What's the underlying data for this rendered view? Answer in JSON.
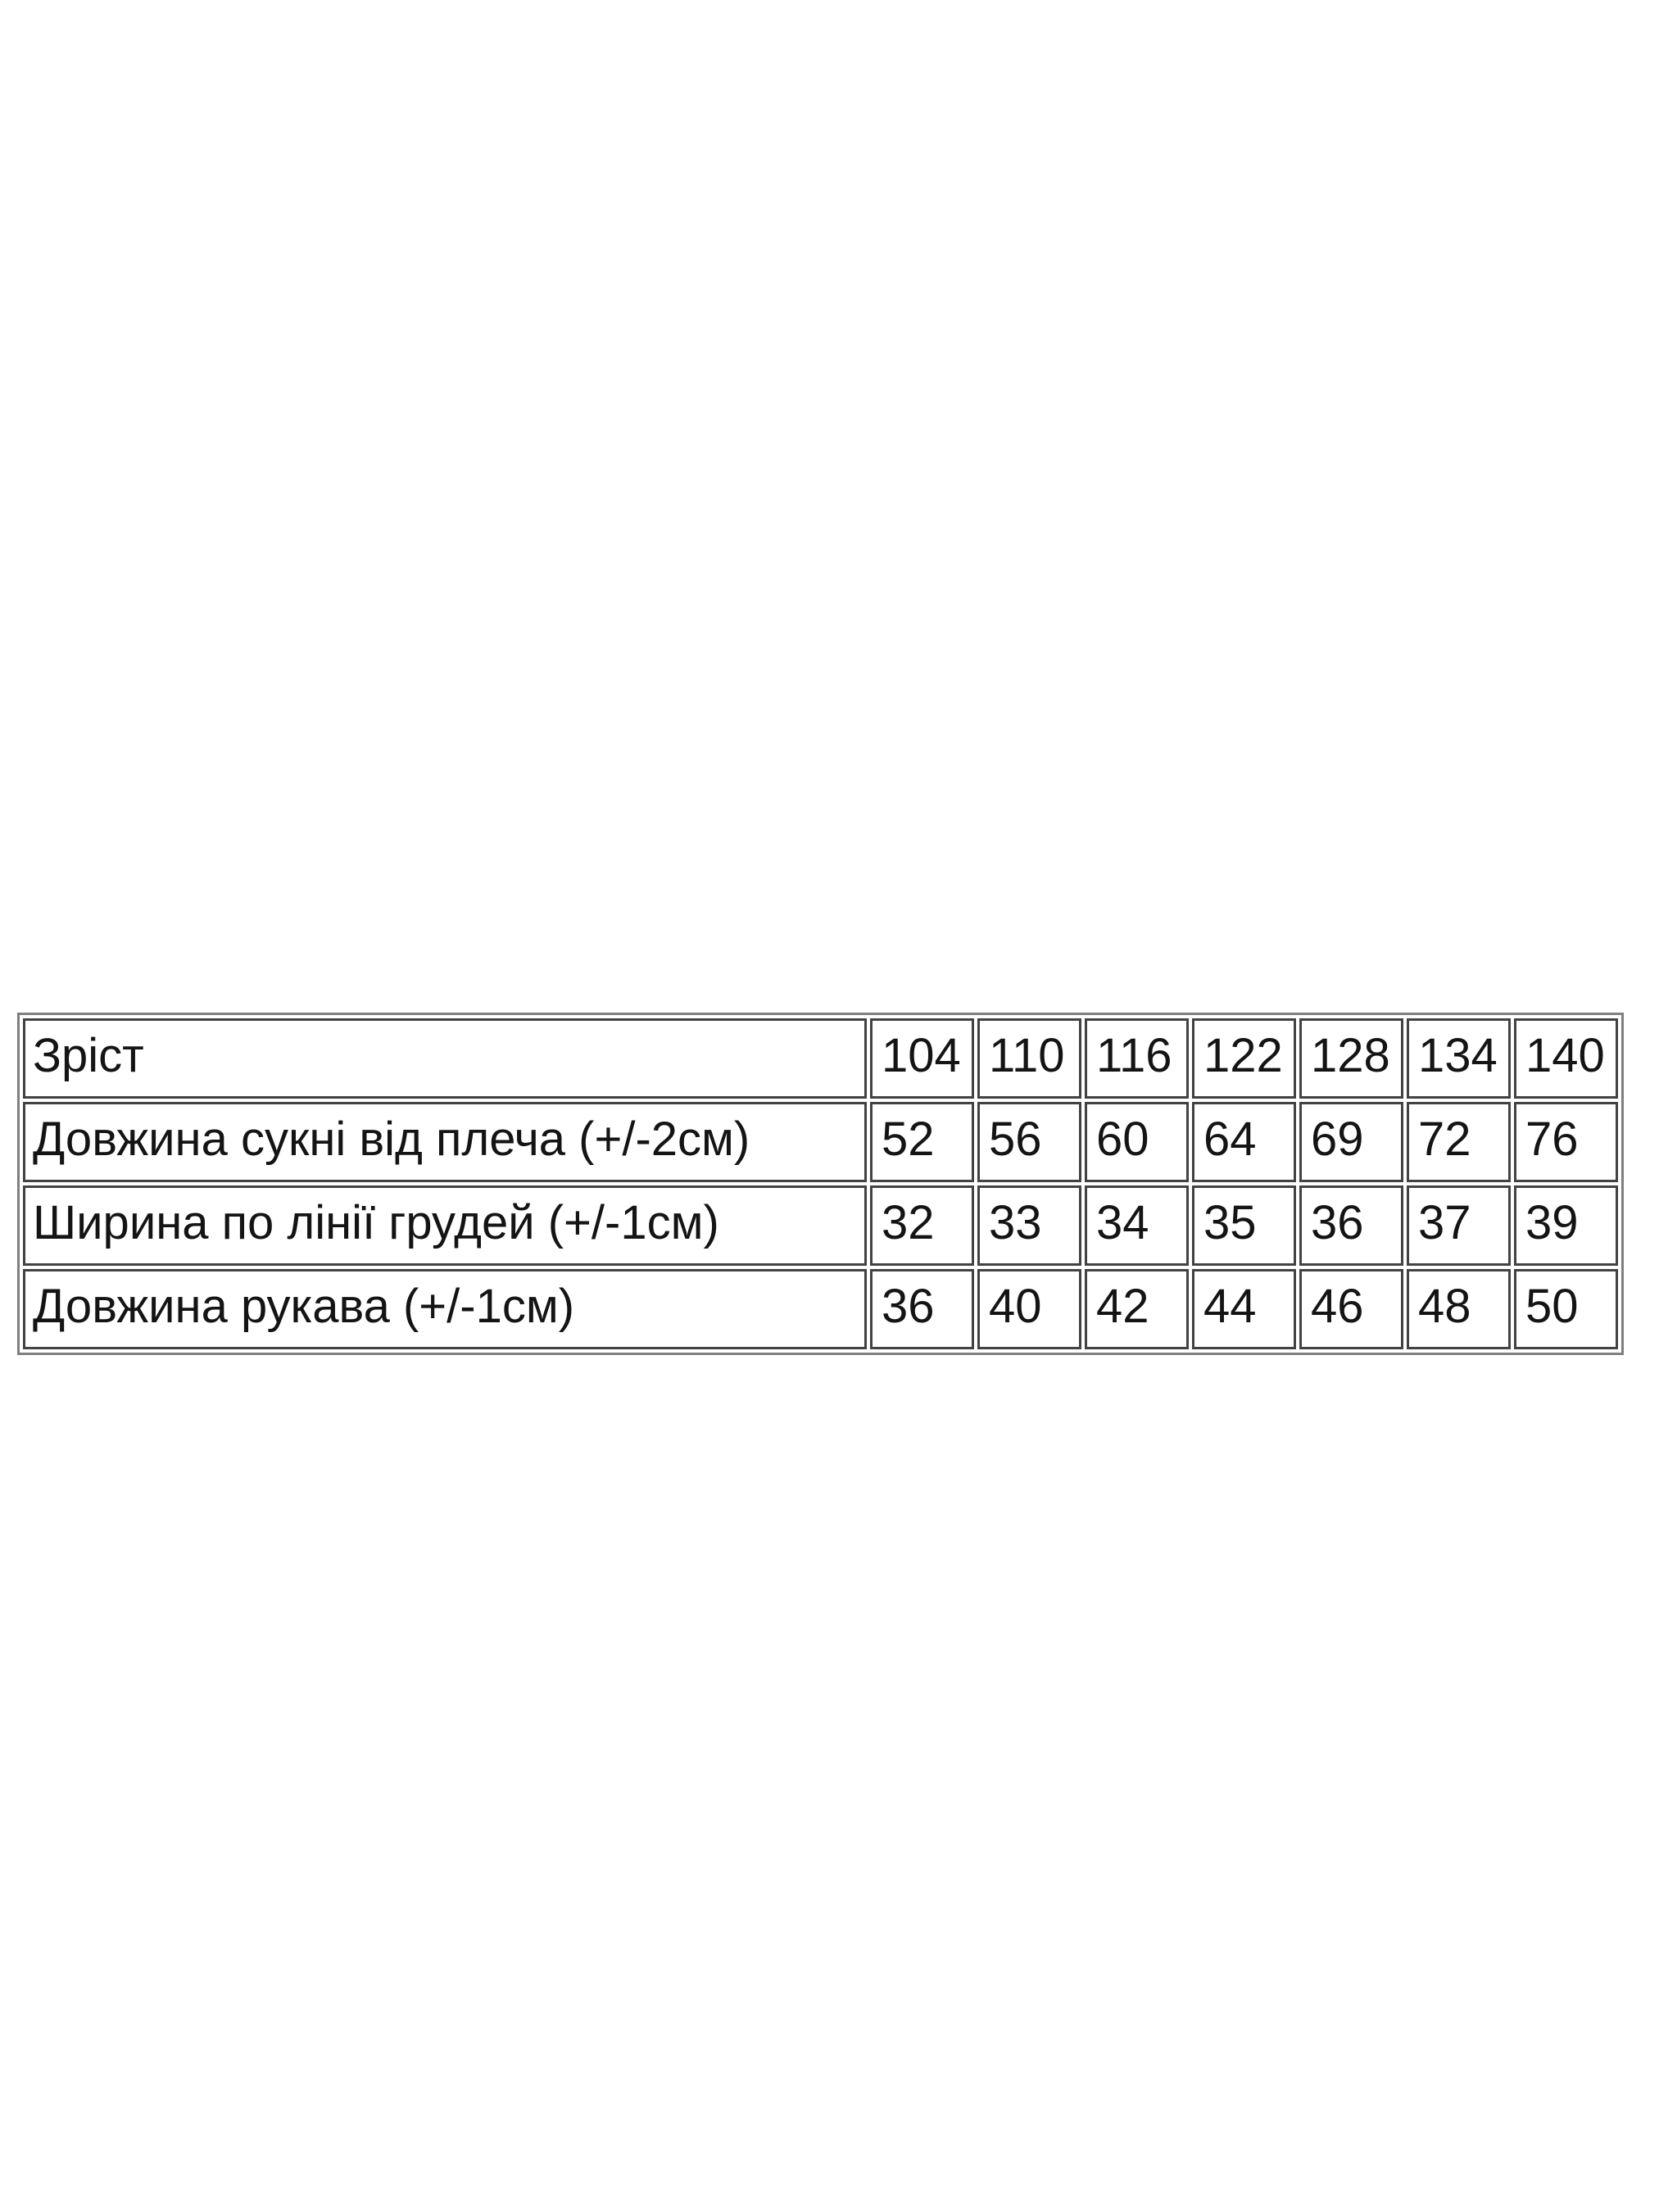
{
  "page": {
    "background": "#ffffff"
  },
  "size_table": {
    "type": "table",
    "description_language": "uk",
    "colors": {
      "outer_border": "#7f7f7f",
      "cell_border": "#424242",
      "text": "#141414",
      "cell_background": "#ffffff"
    },
    "rows": [
      {
        "label": "Зріст",
        "values": [
          "104",
          "110",
          "116",
          "122",
          "128",
          "134",
          "140"
        ]
      },
      {
        "label": "Довжина сукні від плеча (+/-2см)",
        "values": [
          "52",
          "56",
          "60",
          "64",
          "69",
          "72",
          "76"
        ]
      },
      {
        "label": "Ширина по лінії грудей (+/-1см)",
        "values": [
          "32",
          "33",
          "34",
          "35",
          "36",
          "37",
          "39"
        ]
      },
      {
        "label": "Довжина рукава (+/-1см)",
        "values": [
          "36",
          "40",
          "42",
          "44",
          "46",
          "48",
          "50"
        ]
      }
    ]
  }
}
